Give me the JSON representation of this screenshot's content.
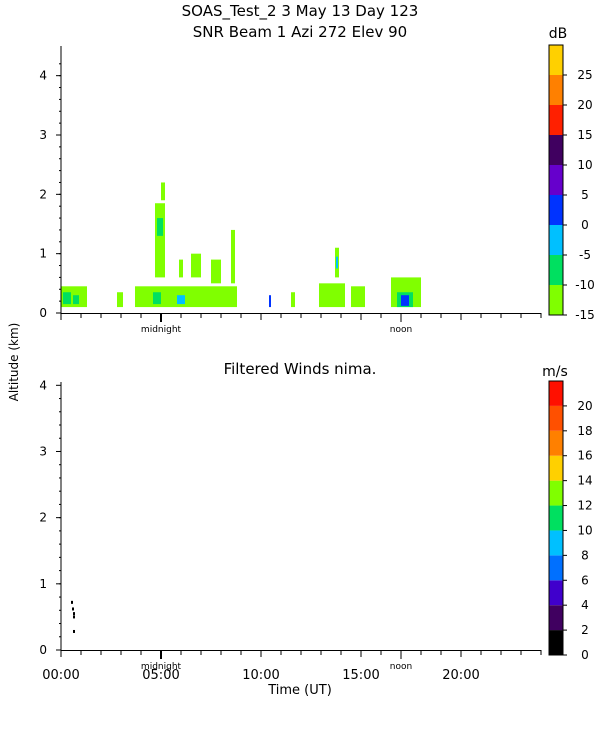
{
  "header": {
    "line1": "SOAS_Test_2    3 May 13 Day 123",
    "line2": "SNR Beam  1 Azi 272 Elev 90"
  },
  "shared": {
    "ylabel": "Altitude (km)",
    "xlabel": "Time (UT)",
    "xticks": [
      "00:00",
      "05:00",
      "10:00",
      "15:00",
      "20:00"
    ],
    "midnight_label": "midnight",
    "noon_label": "noon"
  },
  "chart_data": [
    {
      "type": "heatmap",
      "title": "SNR Beam  1 Azi 272 Elev 90",
      "ylabel": "Altitude (km)",
      "xlim_hours": [
        0,
        24
      ],
      "ylim_km": [
        0,
        4.5
      ],
      "yticks": [
        "0",
        "1",
        "2",
        "3",
        "4"
      ],
      "colorbar": {
        "unit": "dB",
        "range": [
          -15,
          30
        ],
        "ticks": [
          "25",
          "20",
          "15",
          "10",
          "5",
          "0",
          "-5",
          "-10",
          "-15"
        ],
        "colors": [
          "#80ff00",
          "#00e060",
          "#00c0ff",
          "#0033ff",
          "#6600cc",
          "#400060",
          "#ff2000",
          "#ff8000",
          "#ffd000"
        ]
      },
      "cells": [
        {
          "t0": 0.0,
          "t1": 1.3,
          "z0": 0.1,
          "z1": 0.45,
          "c": "#80ff00"
        },
        {
          "t0": 0.1,
          "t1": 0.5,
          "z0": 0.15,
          "z1": 0.35,
          "c": "#00e060"
        },
        {
          "t0": 0.6,
          "t1": 0.9,
          "z0": 0.15,
          "z1": 0.3,
          "c": "#00e060"
        },
        {
          "t0": 2.8,
          "t1": 3.1,
          "z0": 0.1,
          "z1": 0.35,
          "c": "#80ff00"
        },
        {
          "t0": 3.7,
          "t1": 8.8,
          "z0": 0.1,
          "z1": 0.45,
          "c": "#80ff00"
        },
        {
          "t0": 4.6,
          "t1": 5.0,
          "z0": 0.15,
          "z1": 0.35,
          "c": "#00e060"
        },
        {
          "t0": 5.8,
          "t1": 6.2,
          "z0": 0.15,
          "z1": 0.3,
          "c": "#00c0ff"
        },
        {
          "t0": 4.7,
          "t1": 5.2,
          "z0": 0.6,
          "z1": 1.85,
          "c": "#80ff00"
        },
        {
          "t0": 4.8,
          "t1": 5.1,
          "z0": 1.3,
          "z1": 1.6,
          "c": "#00e060"
        },
        {
          "t0": 5.0,
          "t1": 5.2,
          "z0": 1.9,
          "z1": 2.2,
          "c": "#80ff00"
        },
        {
          "t0": 5.9,
          "t1": 6.1,
          "z0": 0.6,
          "z1": 0.9,
          "c": "#80ff00"
        },
        {
          "t0": 6.5,
          "t1": 7.0,
          "z0": 0.6,
          "z1": 1.0,
          "c": "#80ff00"
        },
        {
          "t0": 7.5,
          "t1": 8.0,
          "z0": 0.5,
          "z1": 0.9,
          "c": "#80ff00"
        },
        {
          "t0": 8.5,
          "t1": 8.7,
          "z0": 0.5,
          "z1": 1.4,
          "c": "#80ff00"
        },
        {
          "t0": 10.4,
          "t1": 10.5,
          "z0": 0.1,
          "z1": 0.3,
          "c": "#0033ff"
        },
        {
          "t0": 11.5,
          "t1": 11.7,
          "z0": 0.1,
          "z1": 0.35,
          "c": "#80ff00"
        },
        {
          "t0": 12.9,
          "t1": 14.2,
          "z0": 0.1,
          "z1": 0.5,
          "c": "#80ff00"
        },
        {
          "t0": 13.7,
          "t1": 13.9,
          "z0": 0.6,
          "z1": 1.1,
          "c": "#80ff00"
        },
        {
          "t0": 13.75,
          "t1": 13.85,
          "z0": 0.75,
          "z1": 0.95,
          "c": "#00c0ff"
        },
        {
          "t0": 14.5,
          "t1": 15.2,
          "z0": 0.1,
          "z1": 0.45,
          "c": "#80ff00"
        },
        {
          "t0": 16.5,
          "t1": 18.0,
          "z0": 0.1,
          "z1": 0.6,
          "c": "#80ff00"
        },
        {
          "t0": 16.8,
          "t1": 17.6,
          "z0": 0.1,
          "z1": 0.35,
          "c": "#00e060"
        },
        {
          "t0": 17.0,
          "t1": 17.4,
          "z0": 0.12,
          "z1": 0.3,
          "c": "#0033ff"
        }
      ]
    },
    {
      "type": "heatmap",
      "title": "Filtered Winds nima.",
      "ylabel": "Altitude (km)",
      "xlabel": "Time (UT)",
      "xlim_hours": [
        0,
        24
      ],
      "ylim_km": [
        0,
        4.05
      ],
      "yticks": [
        "0",
        "1",
        "2",
        "3",
        "4"
      ],
      "colorbar": {
        "unit": "m/s",
        "range": [
          0,
          22
        ],
        "ticks": [
          "20",
          "18",
          "16",
          "14",
          "12",
          "10",
          "8",
          "6",
          "4",
          "2",
          "0"
        ],
        "colors": [
          "#000000",
          "#400060",
          "#4000cc",
          "#0070ff",
          "#00c0ff",
          "#00e060",
          "#80ff00",
          "#ffd000",
          "#ff8000",
          "#ff5000",
          "#ff1000"
        ]
      },
      "points": [
        {
          "t": 0.55,
          "z": 0.72
        },
        {
          "t": 0.6,
          "z": 0.62
        },
        {
          "t": 0.65,
          "z": 0.55
        },
        {
          "t": 0.65,
          "z": 0.5
        },
        {
          "t": 0.65,
          "z": 0.28
        }
      ]
    }
  ]
}
